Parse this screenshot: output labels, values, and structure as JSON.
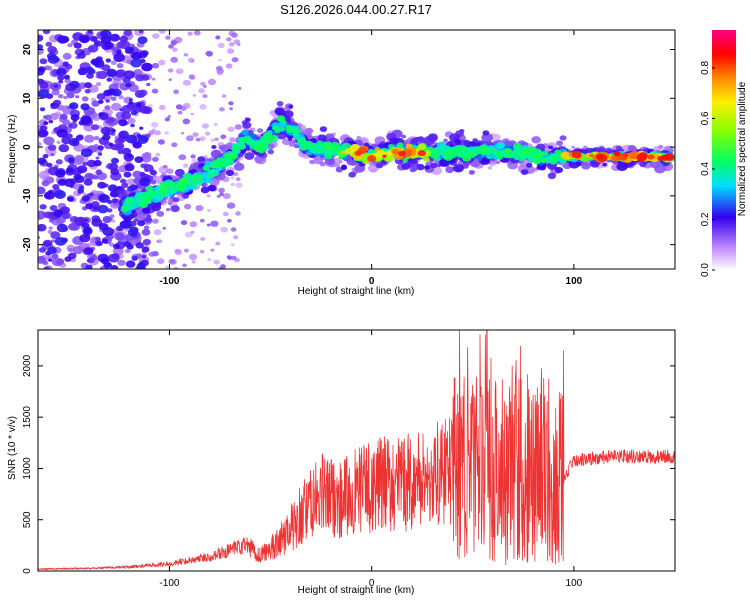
{
  "title": "S126.2026.044.00.27.R17",
  "colors": {
    "snr_line": "#ee3333",
    "axis": "#000000"
  },
  "chart_data": [
    {
      "type": "heatmap",
      "xlabel": "Height of straight line (km)",
      "ylabel": "Frequency (Hz)",
      "xlim": [
        -165,
        150
      ],
      "ylim": [
        -25,
        24
      ],
      "xticks": [
        -100,
        0,
        100
      ],
      "xtick_labels": [
        "-100",
        "0",
        "100"
      ],
      "yticks": [
        -20,
        -10,
        0,
        10,
        20
      ],
      "ytick_labels": [
        "-20",
        "-10",
        "0",
        "10",
        "20"
      ],
      "colorbar": {
        "label": "Normalized spectral amplitude",
        "range": [
          0.0,
          0.95
        ],
        "ticks": [
          0.0,
          0.2,
          0.4,
          0.6,
          0.8
        ],
        "tick_labels": [
          "0.0",
          "0.2",
          "0.4",
          "0.6",
          "0.8"
        ]
      },
      "ridge": {
        "x": [
          -123,
          -110,
          -95,
          -80,
          -70,
          -62,
          -55,
          -45,
          -38,
          -32,
          -25,
          -15,
          -5,
          0,
          10,
          25,
          40,
          55,
          70,
          85,
          95,
          110,
          130,
          148
        ],
        "y": [
          -12,
          -10,
          -8,
          -5,
          -2,
          2,
          0,
          5,
          3,
          0,
          0,
          -1,
          -1.5,
          -2,
          -1,
          -1,
          -1,
          -1,
          -1,
          -2,
          -2,
          -2,
          -2,
          -2
        ]
      }
    },
    {
      "type": "line",
      "xlabel": "Height of straight line (km)",
      "ylabel": "SNR (10 * v/v)",
      "xlim": [
        -165,
        150
      ],
      "ylim": [
        0,
        2350
      ],
      "xticks": [
        -100,
        0,
        100
      ],
      "xtick_labels": [
        "-100",
        "0",
        "100"
      ],
      "yticks": [
        0,
        500,
        1000,
        1500,
        2000
      ],
      "ytick_labels": [
        "0",
        "500",
        "1000",
        "1500",
        "2000"
      ],
      "series": [
        {
          "name": "SNR",
          "x": [
            -165,
            -140,
            -120,
            -100,
            -80,
            -70,
            -62,
            -55,
            -45,
            -35,
            -25,
            -15,
            -5,
            5,
            15,
            25,
            35,
            45,
            55,
            65,
            75,
            85,
            95,
            100,
            110,
            125,
            140,
            150
          ],
          "y": [
            20,
            25,
            40,
            70,
            140,
            200,
            250,
            150,
            300,
            550,
            750,
            700,
            800,
            850,
            850,
            900,
            950,
            1000,
            1000,
            1000,
            1000,
            1000,
            900,
            1080,
            1100,
            1120,
            1110,
            1120
          ]
        }
      ]
    }
  ]
}
